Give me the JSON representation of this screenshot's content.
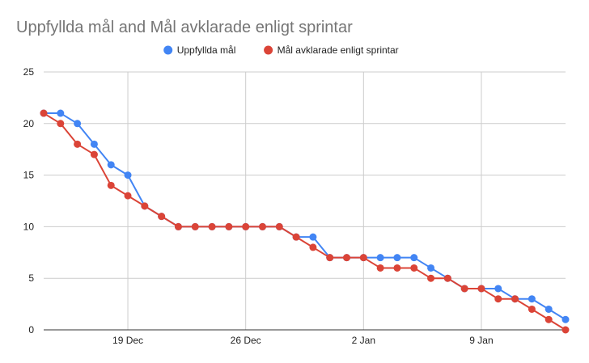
{
  "chart_data": {
    "type": "line",
    "title": "Uppfyllda mål and Mål avklarade enligt sprintar",
    "xlabel": "",
    "ylabel": "",
    "x_start": "2023-12-14",
    "x_end": "2024-01-14",
    "x_ticks": [
      {
        "label": "19 Dec",
        "date": "2023-12-19"
      },
      {
        "label": "26 Dec",
        "date": "2023-12-26"
      },
      {
        "label": "2 Jan",
        "date": "2024-01-02"
      },
      {
        "label": "9 Jan",
        "date": "2024-01-09"
      }
    ],
    "ylim": [
      0,
      25
    ],
    "y_ticks": [
      0,
      5,
      10,
      15,
      20,
      25
    ],
    "grid": true,
    "legend_position": "top",
    "x": [
      "2023-12-14",
      "2023-12-15",
      "2023-12-16",
      "2023-12-17",
      "2023-12-18",
      "2023-12-19",
      "2023-12-20",
      "2023-12-21",
      "2023-12-22",
      "2023-12-23",
      "2023-12-24",
      "2023-12-25",
      "2023-12-26",
      "2023-12-27",
      "2023-12-28",
      "2023-12-29",
      "2023-12-30",
      "2023-12-31",
      "2024-01-01",
      "2024-01-02",
      "2024-01-03",
      "2024-01-04",
      "2024-01-05",
      "2024-01-06",
      "2024-01-07",
      "2024-01-08",
      "2024-01-09",
      "2024-01-10",
      "2024-01-11",
      "2024-01-12",
      "2024-01-13",
      "2024-01-14"
    ],
    "series": [
      {
        "name": "Uppfyllda mål",
        "color": "#4285f4",
        "values": [
          21,
          21,
          20,
          18,
          16,
          15,
          12,
          11,
          10,
          10,
          10,
          10,
          10,
          10,
          10,
          9,
          9,
          7,
          7,
          7,
          7,
          7,
          7,
          6,
          5,
          4,
          4,
          4,
          3,
          3,
          2,
          1
        ]
      },
      {
        "name": "Mål avklarade enligt sprintar",
        "color": "#db4437",
        "values": [
          21,
          20,
          18,
          17,
          14,
          13,
          12,
          11,
          10,
          10,
          10,
          10,
          10,
          10,
          10,
          9,
          8,
          7,
          7,
          7,
          6,
          6,
          6,
          5,
          5,
          4,
          4,
          3,
          3,
          2,
          1,
          0
        ]
      }
    ]
  }
}
